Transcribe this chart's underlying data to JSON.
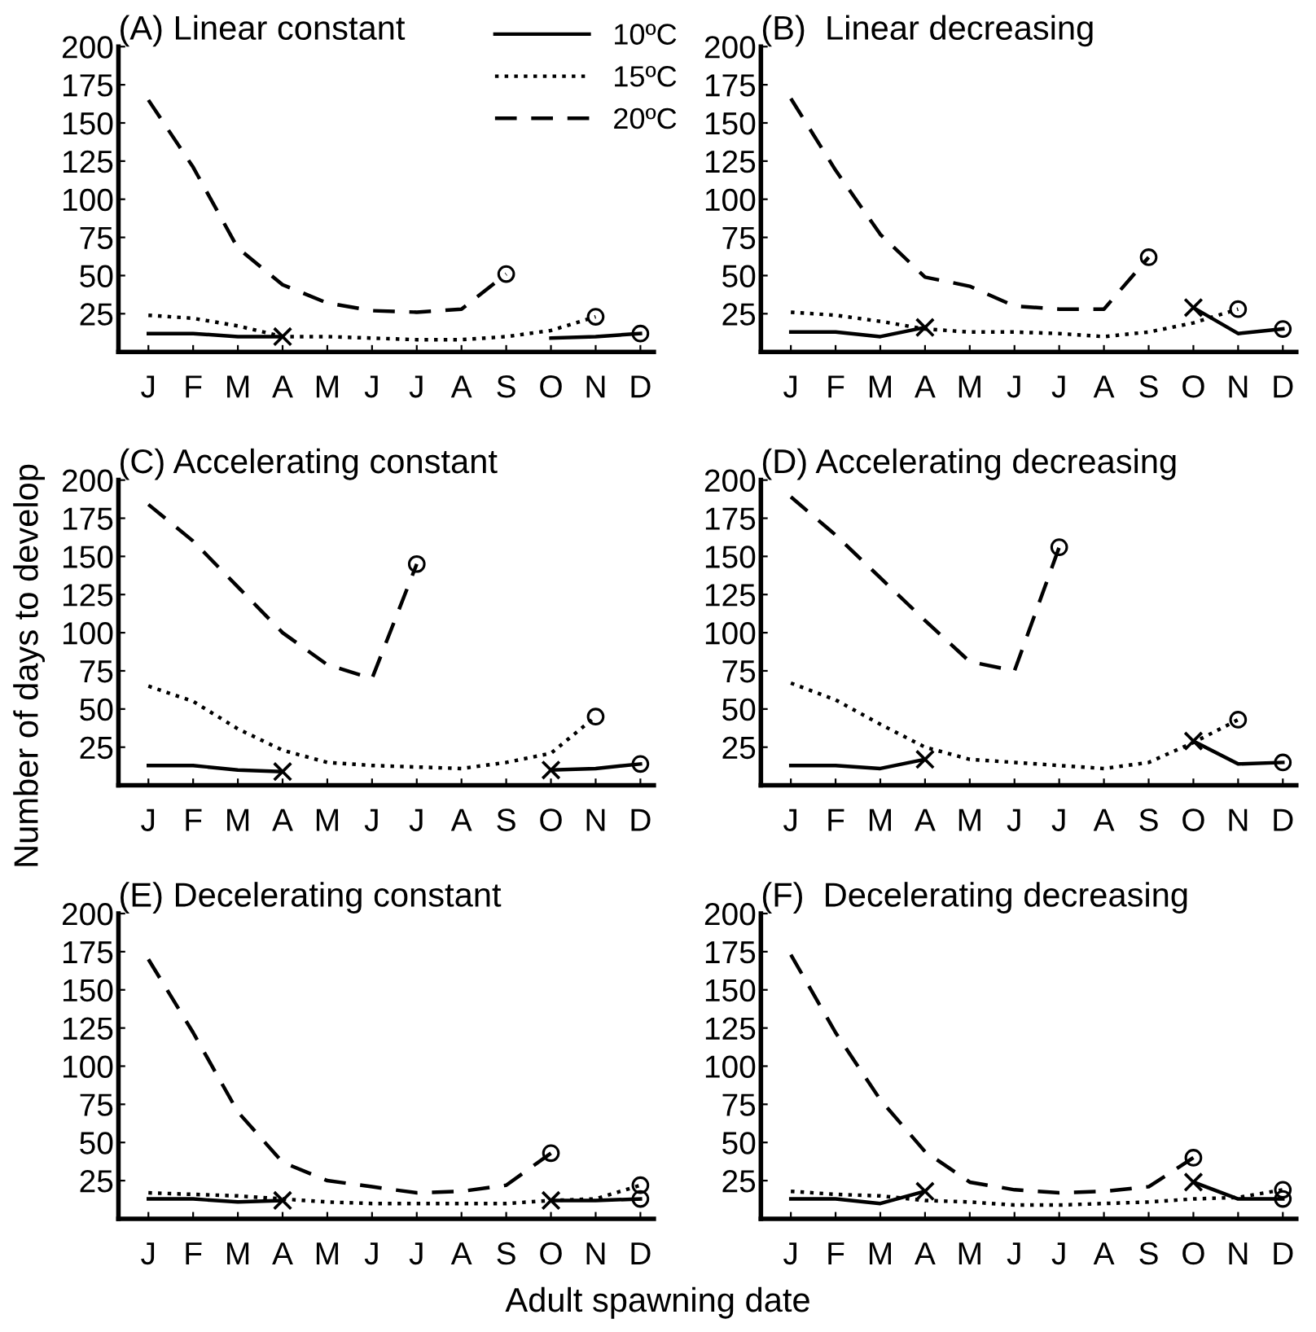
{
  "chart_data": [
    {
      "type": "line",
      "title": "(A) Linear constant",
      "xlabel": "Adult spawning date",
      "ylabel": "Number of days to develop",
      "legend": "top right",
      "categories": [
        "J",
        "F",
        "M",
        "A",
        "M",
        "J",
        "J",
        "A",
        "S",
        "O",
        "N",
        "D"
      ],
      "ylim": [
        0,
        200
      ],
      "yticks": [
        25,
        50,
        75,
        100,
        125,
        150,
        175,
        200
      ],
      "series": [
        {
          "name": "10ºC",
          "color": "#000000",
          "line_style": "solid",
          "values": [
            12,
            12,
            10,
            10,
            null,
            null,
            null,
            null,
            null,
            9,
            10,
            12
          ]
        },
        {
          "name": "15ºC",
          "color": "#000000",
          "line_style": "dotted",
          "values": [
            24,
            22,
            17,
            10,
            10,
            9,
            8,
            8,
            10,
            14,
            23,
            null
          ]
        },
        {
          "name": "20ºC",
          "color": "#000000",
          "line_style": "dashed",
          "values": [
            165,
            121,
            68,
            44,
            32,
            27,
            26,
            28,
            51,
            null,
            null,
            null
          ]
        },
        {
          "type": "scatter",
          "marker": "cross",
          "color": "#000000",
          "values": [
            null,
            null,
            null,
            10,
            null,
            null,
            null,
            null,
            null,
            null,
            null,
            null
          ]
        },
        {
          "type": "scatter",
          "marker": "circle",
          "color": "#000000",
          "values": [
            null,
            null,
            null,
            null,
            null,
            null,
            null,
            null,
            51,
            null,
            23,
            12
          ]
        }
      ]
    },
    {
      "type": "line",
      "title": "(B)  Linear decreasing",
      "categories": [
        "J",
        "F",
        "M",
        "A",
        "M",
        "J",
        "J",
        "A",
        "S",
        "O",
        "N",
        "D"
      ],
      "ylim": [
        0,
        200
      ],
      "yticks": [
        25,
        50,
        75,
        100,
        125,
        150,
        175,
        200
      ],
      "series": [
        {
          "color": "#000000",
          "line_style": "solid",
          "values": [
            13,
            13,
            10,
            16,
            null,
            null,
            null,
            null,
            null,
            29,
            12,
            15
          ]
        },
        {
          "color": "#000000",
          "line_style": "dotted",
          "values": [
            26,
            24,
            20,
            15,
            13,
            13,
            12,
            10,
            13,
            19,
            28,
            null
          ]
        },
        {
          "color": "#000000",
          "line_style": "dashed",
          "values": [
            166,
            119,
            77,
            49,
            43,
            30,
            28,
            28,
            62,
            null,
            null,
            null
          ]
        },
        {
          "type": "scatter",
          "marker": "cross",
          "color": "#000000",
          "values": [
            null,
            null,
            null,
            16,
            null,
            null,
            null,
            null,
            null,
            29,
            null,
            null
          ]
        },
        {
          "type": "scatter",
          "marker": "circle",
          "color": "#000000",
          "values": [
            null,
            null,
            null,
            null,
            null,
            null,
            null,
            null,
            62,
            null,
            28,
            15
          ]
        }
      ]
    },
    {
      "type": "line",
      "title": "(C) Accelerating constant",
      "categories": [
        "J",
        "F",
        "M",
        "A",
        "M",
        "J",
        "J",
        "A",
        "S",
        "O",
        "N",
        "D"
      ],
      "ylim": [
        0,
        200
      ],
      "yticks": [
        25,
        50,
        75,
        100,
        125,
        150,
        175,
        200
      ],
      "series": [
        {
          "color": "#000000",
          "line_style": "solid",
          "values": [
            13,
            13,
            10,
            9,
            null,
            null,
            null,
            null,
            null,
            10,
            11,
            14
          ]
        },
        {
          "color": "#000000",
          "line_style": "dotted",
          "values": [
            65,
            55,
            37,
            23,
            15,
            13,
            12,
            11,
            15,
            21,
            45,
            null
          ]
        },
        {
          "color": "#000000",
          "line_style": "dashed",
          "values": [
            184,
            160,
            130,
            100,
            79,
            70,
            145,
            null,
            null,
            null,
            null,
            null
          ]
        },
        {
          "type": "scatter",
          "marker": "cross",
          "color": "#000000",
          "values": [
            null,
            null,
            null,
            9,
            null,
            null,
            null,
            null,
            null,
            10,
            null,
            null
          ]
        },
        {
          "type": "scatter",
          "marker": "circle",
          "color": "#000000",
          "values": [
            null,
            null,
            null,
            null,
            null,
            null,
            145,
            null,
            null,
            null,
            45,
            14
          ]
        }
      ]
    },
    {
      "type": "line",
      "title": "(D) Accelerating decreasing",
      "categories": [
        "J",
        "F",
        "M",
        "A",
        "M",
        "J",
        "J",
        "A",
        "S",
        "O",
        "N",
        "D"
      ],
      "ylim": [
        0,
        200
      ],
      "yticks": [
        25,
        50,
        75,
        100,
        125,
        150,
        175,
        200
      ],
      "series": [
        {
          "color": "#000000",
          "line_style": "solid",
          "values": [
            13,
            13,
            11,
            17,
            null,
            null,
            null,
            null,
            null,
            29,
            14,
            15
          ]
        },
        {
          "color": "#000000",
          "line_style": "dotted",
          "values": [
            67,
            56,
            40,
            25,
            17,
            15,
            13,
            11,
            15,
            28,
            43,
            null
          ]
        },
        {
          "color": "#000000",
          "line_style": "dashed",
          "values": [
            189,
            164,
            136,
            108,
            81,
            75,
            156,
            null,
            null,
            null,
            null,
            null
          ]
        },
        {
          "type": "scatter",
          "marker": "cross",
          "color": "#000000",
          "values": [
            null,
            null,
            null,
            17,
            null,
            null,
            null,
            null,
            null,
            29,
            null,
            null
          ]
        },
        {
          "type": "scatter",
          "marker": "circle",
          "color": "#000000",
          "values": [
            null,
            null,
            null,
            null,
            null,
            null,
            156,
            null,
            null,
            null,
            43,
            15
          ]
        }
      ]
    },
    {
      "type": "line",
      "title": "(E) Decelerating constant",
      "categories": [
        "J",
        "F",
        "M",
        "A",
        "M",
        "J",
        "J",
        "A",
        "S",
        "O",
        "N",
        "D"
      ],
      "ylim": [
        0,
        200
      ],
      "yticks": [
        25,
        50,
        75,
        100,
        125,
        150,
        175,
        200
      ],
      "series": [
        {
          "color": "#000000",
          "line_style": "dotted",
          "values": [
            17,
            16,
            15,
            13,
            11,
            10,
            10,
            10,
            10,
            12,
            13,
            22
          ]
        },
        {
          "color": "#000000",
          "line_style": "dashed",
          "values": [
            170,
            122,
            70,
            37,
            25,
            21,
            17,
            18,
            22,
            43,
            null,
            null
          ]
        },
        {
          "color": "#000000",
          "line_style": "solid",
          "values": [
            13,
            13,
            11,
            12,
            null,
            null,
            null,
            null,
            null,
            12,
            12,
            13
          ]
        },
        {
          "type": "scatter",
          "marker": "cross",
          "color": "#000000",
          "values": [
            null,
            null,
            null,
            12,
            null,
            null,
            null,
            null,
            null,
            12,
            null,
            null
          ]
        },
        {
          "type": "scatter",
          "marker": "circle",
          "color": "#000000",
          "values": [
            null,
            null,
            null,
            null,
            null,
            null,
            null,
            null,
            null,
            43,
            null,
            22
          ]
        },
        {
          "type": "scatter",
          "marker": "circle",
          "color": "#000000",
          "values": [
            null,
            null,
            null,
            null,
            null,
            null,
            null,
            null,
            null,
            null,
            null,
            13
          ]
        }
      ]
    },
    {
      "type": "line",
      "title": "(F)  Decelerating decreasing",
      "categories": [
        "J",
        "F",
        "M",
        "A",
        "M",
        "J",
        "J",
        "A",
        "S",
        "O",
        "N",
        "D"
      ],
      "ylim": [
        0,
        200
      ],
      "yticks": [
        25,
        50,
        75,
        100,
        125,
        150,
        175,
        200
      ],
      "series": [
        {
          "color": "#000000",
          "line_style": "solid",
          "values": [
            13,
            13,
            10,
            18,
            null,
            null,
            null,
            null,
            null,
            24,
            13,
            13
          ]
        },
        {
          "color": "#000000",
          "line_style": "dotted",
          "values": [
            18,
            16,
            15,
            12,
            11,
            9,
            9,
            10,
            11,
            13,
            14,
            19
          ]
        },
        {
          "color": "#000000",
          "line_style": "dashed",
          "values": [
            173,
            122,
            78,
            44,
            24,
            19,
            17,
            18,
            21,
            40,
            null,
            null
          ]
        },
        {
          "type": "scatter",
          "marker": "cross",
          "color": "#000000",
          "values": [
            null,
            null,
            null,
            18,
            null,
            null,
            null,
            null,
            null,
            24,
            null,
            null
          ]
        },
        {
          "type": "scatter",
          "marker": "circle",
          "color": "#000000",
          "values": [
            null,
            null,
            null,
            null,
            null,
            null,
            null,
            null,
            null,
            40,
            null,
            19
          ]
        },
        {
          "type": "scatter",
          "marker": "circle",
          "color": "#000000",
          "values": [
            null,
            null,
            null,
            null,
            null,
            null,
            null,
            null,
            null,
            null,
            null,
            13
          ]
        }
      ]
    }
  ]
}
